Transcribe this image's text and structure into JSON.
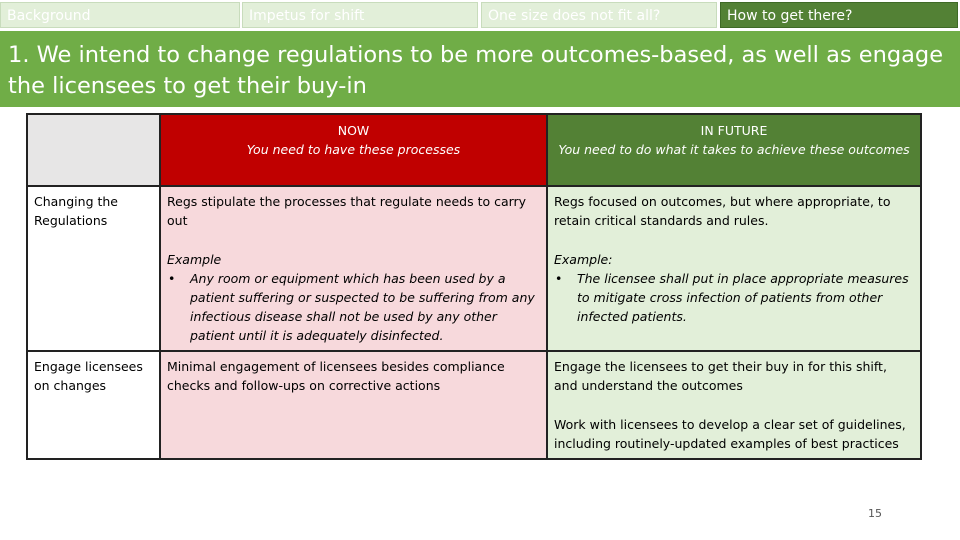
{
  "tabs": [
    {
      "label": "Background",
      "active": false
    },
    {
      "label": "Impetus for shift",
      "active": false
    },
    {
      "label": "One size does not fit all?",
      "active": false
    },
    {
      "label": "How to get there?",
      "active": true
    }
  ],
  "title": "1. We intend to change regulations to be more outcomes-based, as well as engage the licensees to get their buy-in",
  "table": {
    "header_now": {
      "label": "NOW",
      "sub": "You need to have these processes"
    },
    "header_future": {
      "label": "IN FUTURE",
      "sub": "You need to do what it takes to achieve these outcomes"
    },
    "rows": [
      {
        "label": "Changing the Regulations",
        "now_text": "Regs stipulate the processes that regulate needs to carry out",
        "now_example_label": "Example",
        "now_example_bullet": "Any room or equipment which has been used by a patient suffering or suspected to be suffering from any infectious disease shall not be used by any other patient until it is adequately disinfected.",
        "future_text": "Regs focused on outcomes, but where appropriate, to retain critical standards and rules.",
        "future_example_label": "Example:",
        "future_example_bullet": "The licensee shall put in place appropriate measures to mitigate cross infection of patients from other infected patients."
      },
      {
        "label": "Engage licensees on changes",
        "now_text": "Minimal engagement of licensees besides compliance checks and follow-ups on corrective actions",
        "future_text": "Engage the licensees to get their buy in for this shift, and understand the outcomes",
        "future_text_2": "Work with licensees to develop a clear set of guidelines, including routinely-updated examples of best practices"
      }
    ]
  },
  "bullet_glyph": "•",
  "page_number": "15",
  "colors": {
    "title_bar": "#70ad47",
    "tab_active": "#538135",
    "tab_inactive": "#e2efd9",
    "now_header": "#c00000",
    "now_cell": "#f7d9dc",
    "future_header": "#538135",
    "future_cell": "#e2efd9"
  }
}
